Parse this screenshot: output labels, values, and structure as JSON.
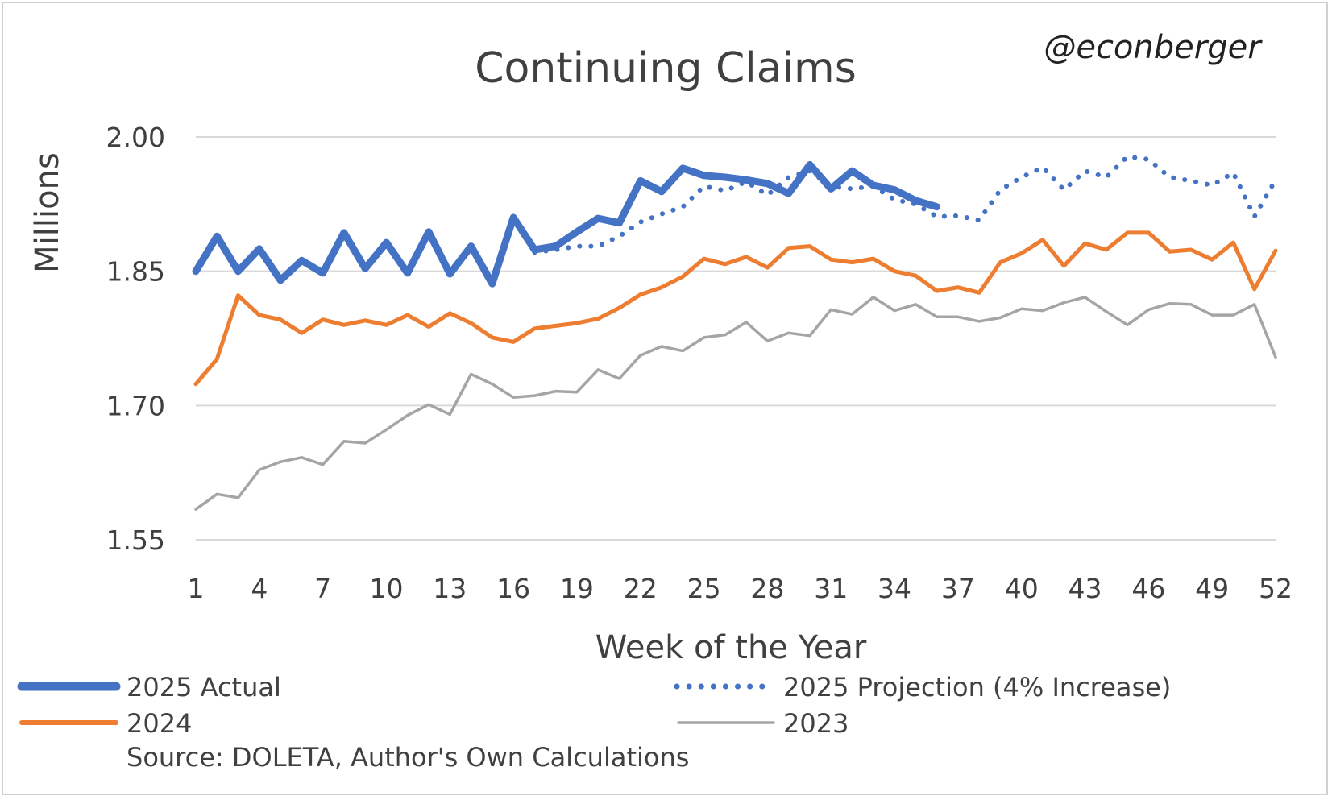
{
  "chart_data": {
    "type": "line",
    "title": "Continuing Claims",
    "handle": "@econberger",
    "xlabel": "Week of the Year",
    "ylabel": "Millions",
    "ylim": [
      1.55,
      2.0
    ],
    "yticks": [
      "1.55",
      "1.70",
      "1.85",
      "2.00"
    ],
    "xlim": [
      1,
      52
    ],
    "xticks": [
      "1",
      "4",
      "7",
      "10",
      "13",
      "16",
      "19",
      "22",
      "25",
      "28",
      "31",
      "34",
      "37",
      "40",
      "43",
      "46",
      "49",
      "52"
    ],
    "grid": true,
    "legend_position": "bottom",
    "source": "Source: DOLETA, Author's Own Calculations",
    "x": [
      1,
      2,
      3,
      4,
      5,
      6,
      7,
      8,
      9,
      10,
      11,
      12,
      13,
      14,
      15,
      16,
      17,
      18,
      19,
      20,
      21,
      22,
      23,
      24,
      25,
      26,
      27,
      28,
      29,
      30,
      31,
      32,
      33,
      34,
      35,
      36,
      37,
      38,
      39,
      40,
      41,
      42,
      43,
      44,
      45,
      46,
      47,
      48,
      49,
      50,
      51,
      52
    ],
    "series": [
      {
        "name": "2025 Actual",
        "color": "#4472C4",
        "style": "solid-thick",
        "values": [
          1.85,
          1.889,
          1.85,
          1.875,
          1.84,
          1.862,
          1.848,
          1.893,
          1.853,
          1.882,
          1.848,
          1.894,
          1.847,
          1.878,
          1.836,
          1.91,
          1.874,
          1.878,
          1.894,
          1.909,
          1.904,
          1.951,
          1.939,
          1.965,
          1.957,
          1.955,
          1.952,
          1.948,
          1.937,
          1.969,
          1.942,
          1.962,
          1.946,
          1.941,
          1.929,
          1.922,
          null,
          null,
          null,
          null,
          null,
          null,
          null,
          null,
          null,
          null,
          null,
          null,
          null,
          null,
          null,
          null
        ]
      },
      {
        "name": "2025 Projection (4% Increase)",
        "color": "#4472C4",
        "style": "dotted",
        "values": [
          null,
          null,
          null,
          null,
          null,
          null,
          null,
          null,
          null,
          null,
          null,
          null,
          null,
          null,
          null,
          null,
          1.871,
          1.874,
          1.878,
          1.878,
          1.889,
          1.905,
          1.914,
          1.922,
          1.945,
          1.94,
          1.95,
          1.935,
          1.955,
          1.962,
          1.945,
          1.942,
          1.945,
          1.93,
          1.925,
          1.911,
          1.912,
          1.907,
          1.941,
          1.955,
          1.966,
          1.941,
          1.962,
          1.955,
          1.978,
          1.975,
          1.955,
          1.951,
          1.946,
          1.96,
          1.911,
          1.952
        ]
      },
      {
        "name": "2024",
        "color": "#ED7D31",
        "style": "solid",
        "values": [
          1.724,
          1.752,
          1.823,
          1.801,
          1.796,
          1.781,
          1.796,
          1.79,
          1.795,
          1.79,
          1.801,
          1.788,
          1.803,
          1.792,
          1.776,
          1.771,
          1.786,
          1.789,
          1.792,
          1.797,
          1.809,
          1.824,
          1.832,
          1.844,
          1.864,
          1.858,
          1.866,
          1.854,
          1.876,
          1.878,
          1.863,
          1.86,
          1.864,
          1.85,
          1.845,
          1.828,
          1.832,
          1.826,
          1.86,
          1.87,
          1.885,
          1.856,
          1.881,
          1.874,
          1.893,
          1.893,
          1.872,
          1.874,
          1.863,
          1.882,
          1.83,
          1.873
        ]
      },
      {
        "name": "2023",
        "color": "#A5A5A5",
        "style": "solid-thin",
        "values": [
          1.584,
          1.601,
          1.597,
          1.628,
          1.637,
          1.642,
          1.634,
          1.66,
          1.658,
          1.673,
          1.689,
          1.701,
          1.69,
          1.735,
          1.724,
          1.709,
          1.711,
          1.716,
          1.715,
          1.74,
          1.73,
          1.756,
          1.766,
          1.761,
          1.776,
          1.779,
          1.793,
          1.772,
          1.781,
          1.778,
          1.807,
          1.802,
          1.821,
          1.806,
          1.813,
          1.799,
          1.799,
          1.794,
          1.798,
          1.808,
          1.806,
          1.815,
          1.821,
          1.805,
          1.79,
          1.807,
          1.814,
          1.813,
          1.801,
          1.801,
          1.813,
          1.754
        ]
      }
    ]
  }
}
